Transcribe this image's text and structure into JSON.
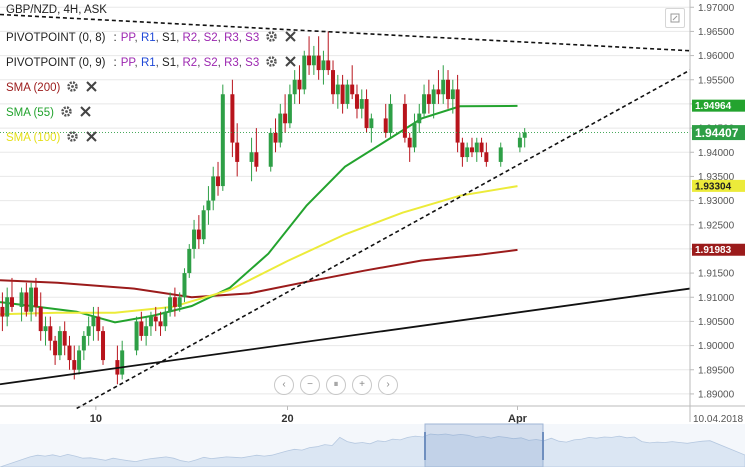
{
  "header": {
    "symbol_label": "GBP/NZD, 4H, ASK"
  },
  "legend": {
    "pivot_rows": [
      {
        "name": "PIVOTPOINT (0, 8)",
        "separator": ":",
        "items": [
          "PP",
          "R1",
          "S1",
          "R2",
          "S2",
          "R3",
          "S3"
        ],
        "colors": [
          "#9c27b0",
          "#1e47d6",
          "#222222",
          "#9c27b0",
          "#9c27b0",
          "#9c27b0",
          "#9c27b0"
        ]
      },
      {
        "name": "PIVOTPOINT (0, 9)",
        "separator": ":",
        "items": [
          "PP",
          "R1",
          "S1",
          "R2",
          "S2",
          "R3",
          "S3"
        ],
        "colors": [
          "#9c27b0",
          "#1e47d6",
          "#222222",
          "#9c27b0",
          "#9c27b0",
          "#9c27b0",
          "#9c27b0"
        ]
      }
    ],
    "sma_rows": [
      {
        "label": "SMA (200)",
        "color": "#9b1b1b"
      },
      {
        "label": "SMA (55)",
        "color": "#23a32e"
      },
      {
        "label": "SMA (100)",
        "color": "#e6e01a"
      }
    ]
  },
  "colors": {
    "up_candle": "#2e9f46",
    "down_candle": "#b8141c",
    "sma200": "#9b1b1b",
    "sma55": "#23a32e",
    "sma100": "#eceb3a",
    "last_price_bg": "#2e9f46",
    "grid": "#e8e8e8",
    "axis_text": "#555555"
  },
  "chart_data": {
    "type": "candlestick",
    "y_axis": {
      "ticks": [
        "1.97000",
        "1.96500",
        "1.96000",
        "1.95500",
        "1.95000",
        "1.94500",
        "1.94000",
        "1.93500",
        "1.93000",
        "1.92500",
        "1.92000",
        "1.91500",
        "1.91000",
        "1.90500",
        "1.90000",
        "1.89500",
        "1.89000"
      ],
      "ylim": [
        1.8875,
        1.9715
      ]
    },
    "x_axis": {
      "tick_labels": [
        "10",
        "20",
        "Apr"
      ],
      "tick_dates": [
        "2018-03-10",
        "2018-03-20",
        "2018-04-01"
      ],
      "last_date_label": "10.04.2018",
      "range_start": "2018-03-05",
      "range_end": "2018-04-10"
    },
    "price_labels": [
      {
        "series": "SMA (55)",
        "value": "1.94964"
      },
      {
        "series": "last",
        "value": "1.94407"
      },
      {
        "series": "SMA (100)",
        "value": "1.93304"
      },
      {
        "series": "SMA (200)",
        "value": "1.91983"
      }
    ],
    "candles": [
      {
        "date": "2018-03-05",
        "o": 1.908,
        "h": 1.911,
        "l": 1.903,
        "c": 1.906
      },
      {
        "date": "2018-03-05",
        "o": 1.906,
        "h": 1.912,
        "l": 1.904,
        "c": 1.91
      },
      {
        "date": "2018-03-05",
        "o": 1.91,
        "h": 1.914,
        "l": 1.907,
        "c": 1.908
      },
      {
        "date": "2018-03-06",
        "o": 1.908,
        "h": 1.912,
        "l": 1.905,
        "c": 1.911
      },
      {
        "date": "2018-03-06",
        "o": 1.911,
        "h": 1.913,
        "l": 1.906,
        "c": 1.907
      },
      {
        "date": "2018-03-06",
        "o": 1.907,
        "h": 1.913,
        "l": 1.905,
        "c": 1.912
      },
      {
        "date": "2018-03-06",
        "o": 1.912,
        "h": 1.914,
        "l": 1.906,
        "c": 1.908
      },
      {
        "date": "2018-03-07",
        "o": 1.908,
        "h": 1.911,
        "l": 1.901,
        "c": 1.903
      },
      {
        "date": "2018-03-07",
        "o": 1.903,
        "h": 1.906,
        "l": 1.9,
        "c": 1.904
      },
      {
        "date": "2018-03-07",
        "o": 1.904,
        "h": 1.906,
        "l": 1.899,
        "c": 1.901
      },
      {
        "date": "2018-03-07",
        "o": 1.901,
        "h": 1.902,
        "l": 1.896,
        "c": 1.898
      },
      {
        "date": "2018-03-08",
        "o": 1.898,
        "h": 1.904,
        "l": 1.897,
        "c": 1.903
      },
      {
        "date": "2018-03-08",
        "o": 1.903,
        "h": 1.905,
        "l": 1.898,
        "c": 1.9
      },
      {
        "date": "2018-03-08",
        "o": 1.9,
        "h": 1.902,
        "l": 1.895,
        "c": 1.897
      },
      {
        "date": "2018-03-08",
        "o": 1.897,
        "h": 1.9,
        "l": 1.893,
        "c": 1.895
      },
      {
        "date": "2018-03-09",
        "o": 1.895,
        "h": 1.9,
        "l": 1.894,
        "c": 1.899
      },
      {
        "date": "2018-03-09",
        "o": 1.899,
        "h": 1.903,
        "l": 1.897,
        "c": 1.902
      },
      {
        "date": "2018-03-09",
        "o": 1.902,
        "h": 1.906,
        "l": 1.9,
        "c": 1.904
      },
      {
        "date": "2018-03-09",
        "o": 1.904,
        "h": 1.908,
        "l": 1.901,
        "c": 1.906
      },
      {
        "date": "2018-03-10",
        "o": 1.906,
        "h": 1.908,
        "l": 1.901,
        "c": 1.903
      },
      {
        "date": "2018-03-10",
        "o": 1.903,
        "h": 1.904,
        "l": 1.896,
        "c": 1.897
      },
      {
        "date": "2018-03-11",
        "o": 1.897,
        "h": 1.9,
        "l": 1.892,
        "c": 1.894
      },
      {
        "date": "2018-03-11",
        "o": 1.894,
        "h": 1.901,
        "l": 1.893,
        "c": 1.899
      },
      {
        "date": "2018-03-12",
        "o": 1.899,
        "h": 1.906,
        "l": 1.898,
        "c": 1.905
      },
      {
        "date": "2018-03-12",
        "o": 1.905,
        "h": 1.907,
        "l": 1.901,
        "c": 1.902
      },
      {
        "date": "2018-03-12",
        "o": 1.902,
        "h": 1.906,
        "l": 1.9,
        "c": 1.904
      },
      {
        "date": "2018-03-12",
        "o": 1.904,
        "h": 1.907,
        "l": 1.902,
        "c": 1.906
      },
      {
        "date": "2018-03-13",
        "o": 1.906,
        "h": 1.908,
        "l": 1.903,
        "c": 1.905
      },
      {
        "date": "2018-03-13",
        "o": 1.905,
        "h": 1.907,
        "l": 1.902,
        "c": 1.904
      },
      {
        "date": "2018-03-13",
        "o": 1.904,
        "h": 1.908,
        "l": 1.903,
        "c": 1.907
      },
      {
        "date": "2018-03-13",
        "o": 1.907,
        "h": 1.911,
        "l": 1.906,
        "c": 1.91
      },
      {
        "date": "2018-03-14",
        "o": 1.91,
        "h": 1.912,
        "l": 1.906,
        "c": 1.908
      },
      {
        "date": "2018-03-14",
        "o": 1.908,
        "h": 1.911,
        "l": 1.907,
        "c": 1.91
      },
      {
        "date": "2018-03-14",
        "o": 1.91,
        "h": 1.916,
        "l": 1.909,
        "c": 1.915
      },
      {
        "date": "2018-03-14",
        "o": 1.915,
        "h": 1.921,
        "l": 1.914,
        "c": 1.92
      },
      {
        "date": "2018-03-15",
        "o": 1.92,
        "h": 1.926,
        "l": 1.918,
        "c": 1.924
      },
      {
        "date": "2018-03-15",
        "o": 1.924,
        "h": 1.927,
        "l": 1.92,
        "c": 1.922
      },
      {
        "date": "2018-03-15",
        "o": 1.922,
        "h": 1.929,
        "l": 1.921,
        "c": 1.928
      },
      {
        "date": "2018-03-15",
        "o": 1.928,
        "h": 1.933,
        "l": 1.925,
        "c": 1.93
      },
      {
        "date": "2018-03-16",
        "o": 1.93,
        "h": 1.937,
        "l": 1.928,
        "c": 1.935
      },
      {
        "date": "2018-03-16",
        "o": 1.935,
        "h": 1.938,
        "l": 1.931,
        "c": 1.933
      },
      {
        "date": "2018-03-16",
        "o": 1.933,
        "h": 1.954,
        "l": 1.932,
        "c": 1.952
      },
      {
        "date": "2018-03-17",
        "o": 1.952,
        "h": 1.955,
        "l": 1.939,
        "c": 1.942
      },
      {
        "date": "2018-03-17",
        "o": 1.942,
        "h": 1.946,
        "l": 1.935,
        "c": 1.938
      },
      {
        "date": "2018-03-18",
        "o": 1.938,
        "h": 1.943,
        "l": 1.934,
        "c": 1.94
      },
      {
        "date": "2018-03-18",
        "o": 1.94,
        "h": 1.945,
        "l": 1.936,
        "c": 1.937
      },
      {
        "date": "2018-03-19",
        "o": 1.937,
        "h": 1.945,
        "l": 1.936,
        "c": 1.944
      },
      {
        "date": "2018-03-19",
        "o": 1.944,
        "h": 1.947,
        "l": 1.94,
        "c": 1.942
      },
      {
        "date": "2018-03-19",
        "o": 1.942,
        "h": 1.95,
        "l": 1.941,
        "c": 1.948
      },
      {
        "date": "2018-03-19",
        "o": 1.948,
        "h": 1.952,
        "l": 1.944,
        "c": 1.946
      },
      {
        "date": "2018-03-20",
        "o": 1.946,
        "h": 1.954,
        "l": 1.945,
        "c": 1.952
      },
      {
        "date": "2018-03-20",
        "o": 1.952,
        "h": 1.957,
        "l": 1.95,
        "c": 1.955
      },
      {
        "date": "2018-03-20",
        "o": 1.955,
        "h": 1.958,
        "l": 1.95,
        "c": 1.953
      },
      {
        "date": "2018-03-20",
        "o": 1.953,
        "h": 1.961,
        "l": 1.952,
        "c": 1.96
      },
      {
        "date": "2018-03-21",
        "o": 1.96,
        "h": 1.964,
        "l": 1.956,
        "c": 1.958
      },
      {
        "date": "2018-03-21",
        "o": 1.958,
        "h": 1.962,
        "l": 1.956,
        "c": 1.96
      },
      {
        "date": "2018-03-21",
        "o": 1.96,
        "h": 1.964,
        "l": 1.955,
        "c": 1.957
      },
      {
        "date": "2018-03-21",
        "o": 1.957,
        "h": 1.961,
        "l": 1.954,
        "c": 1.959
      },
      {
        "date": "2018-03-22",
        "o": 1.959,
        "h": 1.965,
        "l": 1.956,
        "c": 1.957
      },
      {
        "date": "2018-03-22",
        "o": 1.957,
        "h": 1.959,
        "l": 1.95,
        "c": 1.952
      },
      {
        "date": "2018-03-22",
        "o": 1.952,
        "h": 1.956,
        "l": 1.949,
        "c": 1.954
      },
      {
        "date": "2018-03-22",
        "o": 1.954,
        "h": 1.956,
        "l": 1.948,
        "c": 1.95
      },
      {
        "date": "2018-03-23",
        "o": 1.95,
        "h": 1.955,
        "l": 1.949,
        "c": 1.954
      },
      {
        "date": "2018-03-23",
        "o": 1.954,
        "h": 1.958,
        "l": 1.951,
        "c": 1.952
      },
      {
        "date": "2018-03-23",
        "o": 1.952,
        "h": 1.954,
        "l": 1.947,
        "c": 1.949
      },
      {
        "date": "2018-03-23",
        "o": 1.949,
        "h": 1.953,
        "l": 1.947,
        "c": 1.951
      },
      {
        "date": "2018-03-24",
        "o": 1.951,
        "h": 1.953,
        "l": 1.944,
        "c": 1.945
      },
      {
        "date": "2018-03-24",
        "o": 1.945,
        "h": 1.948,
        "l": 1.942,
        "c": 1.947
      },
      {
        "date": "2018-03-25",
        "o": 1.947,
        "h": 1.95,
        "l": 1.943,
        "c": 1.944
      },
      {
        "date": "2018-03-25",
        "o": 1.944,
        "h": 1.952,
        "l": 1.943,
        "c": 1.95
      },
      {
        "date": "2018-03-26",
        "o": 1.95,
        "h": 1.952,
        "l": 1.942,
        "c": 1.943
      },
      {
        "date": "2018-03-26",
        "o": 1.943,
        "h": 1.944,
        "l": 1.938,
        "c": 1.941
      },
      {
        "date": "2018-03-26",
        "o": 1.941,
        "h": 1.948,
        "l": 1.94,
        "c": 1.946
      },
      {
        "date": "2018-03-26",
        "o": 1.946,
        "h": 1.95,
        "l": 1.944,
        "c": 1.948
      },
      {
        "date": "2018-03-27",
        "o": 1.948,
        "h": 1.954,
        "l": 1.947,
        "c": 1.952
      },
      {
        "date": "2018-03-27",
        "o": 1.952,
        "h": 1.955,
        "l": 1.948,
        "c": 1.95
      },
      {
        "date": "2018-03-27",
        "o": 1.95,
        "h": 1.954,
        "l": 1.947,
        "c": 1.953
      },
      {
        "date": "2018-03-27",
        "o": 1.953,
        "h": 1.957,
        "l": 1.95,
        "c": 1.952
      },
      {
        "date": "2018-03-28",
        "o": 1.952,
        "h": 1.958,
        "l": 1.95,
        "c": 1.955
      },
      {
        "date": "2018-03-28",
        "o": 1.955,
        "h": 1.957,
        "l": 1.949,
        "c": 1.951
      },
      {
        "date": "2018-03-28",
        "o": 1.951,
        "h": 1.955,
        "l": 1.948,
        "c": 1.953
      },
      {
        "date": "2018-03-28",
        "o": 1.953,
        "h": 1.956,
        "l": 1.94,
        "c": 1.942
      },
      {
        "date": "2018-03-29",
        "o": 1.942,
        "h": 1.943,
        "l": 1.937,
        "c": 1.939
      },
      {
        "date": "2018-03-29",
        "o": 1.939,
        "h": 1.942,
        "l": 1.938,
        "c": 1.941
      },
      {
        "date": "2018-03-29",
        "o": 1.941,
        "h": 1.943,
        "l": 1.939,
        "c": 1.94
      },
      {
        "date": "2018-03-29",
        "o": 1.94,
        "h": 1.943,
        "l": 1.938,
        "c": 1.942
      },
      {
        "date": "2018-03-30",
        "o": 1.942,
        "h": 1.943,
        "l": 1.939,
        "c": 1.94
      },
      {
        "date": "2018-03-30",
        "o": 1.94,
        "h": 1.942,
        "l": 1.937,
        "c": 1.938
      },
      {
        "date": "2018-03-31",
        "o": 1.938,
        "h": 1.942,
        "l": 1.937,
        "c": 1.941
      },
      {
        "date": "2018-04-01",
        "o": 1.941,
        "h": 1.944,
        "l": 1.94,
        "c": 1.943
      },
      {
        "date": "2018-04-01",
        "o": 1.943,
        "h": 1.945,
        "l": 1.941,
        "c": 1.9441
      }
    ],
    "sma_series": [
      {
        "name": "SMA (200)",
        "dates": [
          "2018-03-05",
          "2018-03-08",
          "2018-03-12",
          "2018-03-15",
          "2018-03-18",
          "2018-03-21",
          "2018-03-24",
          "2018-03-27",
          "2018-03-30",
          "2018-04-01"
        ],
        "values": [
          1.9135,
          1.913,
          1.9118,
          1.91,
          1.9108,
          1.9132,
          1.9155,
          1.9176,
          1.9188,
          1.9198
        ]
      },
      {
        "name": "SMA (55)",
        "dates": [
          "2018-03-05",
          "2018-03-07",
          "2018-03-09",
          "2018-03-11",
          "2018-03-13",
          "2018-03-15",
          "2018-03-17",
          "2018-03-19",
          "2018-03-21",
          "2018-03-23",
          "2018-03-25",
          "2018-03-27",
          "2018-03-29",
          "2018-04-01"
        ],
        "values": [
          1.909,
          1.908,
          1.907,
          1.9048,
          1.9062,
          1.9082,
          1.912,
          1.919,
          1.929,
          1.937,
          1.942,
          1.947,
          1.9495,
          1.9496
        ]
      },
      {
        "name": "SMA (100)",
        "dates": [
          "2018-03-05",
          "2018-03-08",
          "2018-03-11",
          "2018-03-14",
          "2018-03-17",
          "2018-03-20",
          "2018-03-23",
          "2018-03-26",
          "2018-03-29",
          "2018-04-01"
        ],
        "values": [
          1.9065,
          1.9068,
          1.9068,
          1.908,
          1.9115,
          1.9175,
          1.923,
          1.9275,
          1.931,
          1.933
        ]
      }
    ],
    "trendlines": [
      {
        "style": "dotted",
        "from": {
          "date": "2018-03-05",
          "value": 1.9685
        },
        "to": {
          "date": "2018-04-10",
          "value": 1.961
        }
      },
      {
        "style": "dotted",
        "from": {
          "date": "2018-03-09",
          "value": 1.887
        },
        "to": {
          "date": "2018-04-10",
          "value": 1.957
        }
      },
      {
        "style": "solid",
        "from": {
          "date": "2018-03-05",
          "value": 1.892
        },
        "to": {
          "date": "2018-04-10",
          "value": 1.9118
        }
      }
    ]
  },
  "navigator": {
    "buttons": [
      {
        "name": "scroll-left-button",
        "icon": "chevron-left-icon",
        "glyph": "‹"
      },
      {
        "name": "zoom-out-button",
        "icon": "zoom-out-icon",
        "glyph": "−"
      },
      {
        "name": "reset-button",
        "icon": "reset-icon",
        "glyph": "⏸"
      },
      {
        "name": "zoom-in-button",
        "icon": "zoom-in-icon",
        "glyph": "+"
      },
      {
        "name": "scroll-right-button",
        "icon": "chevron-right-icon",
        "glyph": "›"
      }
    ]
  }
}
